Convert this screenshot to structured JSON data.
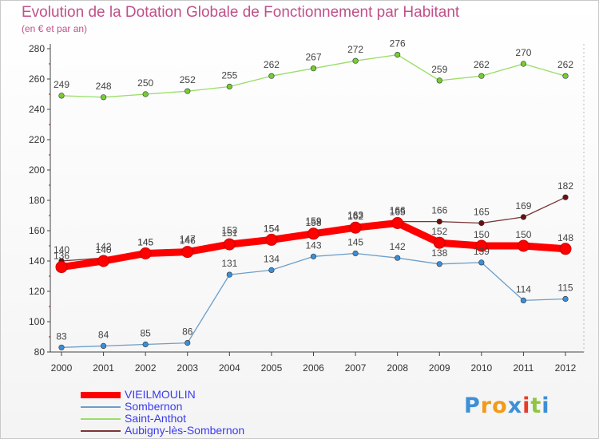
{
  "chart_data": {
    "type": "line",
    "title": "Evolution de la Dotation Globale de Fonctionnement par Habitant",
    "subtitle": "(en € et par an)",
    "x": [
      "2000",
      "2001",
      "2002",
      "2003",
      "2004",
      "2005",
      "2006",
      "2007",
      "2008",
      "2009",
      "2010",
      "2011",
      "2012"
    ],
    "ylim": [
      80,
      280
    ],
    "yticks": [
      80,
      100,
      120,
      140,
      160,
      180,
      200,
      220,
      240,
      260,
      280
    ],
    "grid": false,
    "legend_position": "bottom-left",
    "series": [
      {
        "name": "VIEILMOULIN",
        "color": "#ff0000",
        "emphasis": true,
        "values": [
          136,
          140,
          145,
          146,
          151,
          154,
          158,
          162,
          165,
          152,
          150,
          150,
          148
        ]
      },
      {
        "name": "Sombernon",
        "color": "#6c9ec9",
        "point_color": "#3b8fd6",
        "values": [
          83,
          84,
          85,
          86,
          131,
          134,
          143,
          145,
          142,
          138,
          139,
          114,
          115
        ]
      },
      {
        "name": "Saint-Anthot",
        "color": "#99dd66",
        "point_color": "#77cc33",
        "values": [
          249,
          248,
          250,
          252,
          255,
          262,
          267,
          272,
          276,
          259,
          262,
          270,
          262
        ]
      },
      {
        "name": "Aubigny-lès-Sombernon",
        "color": "#7a3535",
        "point_color": "#6a1010",
        "values": [
          140,
          142,
          145,
          147,
          153,
          154,
          159,
          163,
          166,
          166,
          165,
          169,
          182
        ]
      }
    ]
  },
  "logo": {
    "text": "Proxiti",
    "letter_colors": [
      "#3d8fd6",
      "#f29a1a",
      "#f29a1a",
      "#3d8fd6",
      "#e63c2a",
      "#8dc63f",
      "#3d8fd6"
    ]
  }
}
